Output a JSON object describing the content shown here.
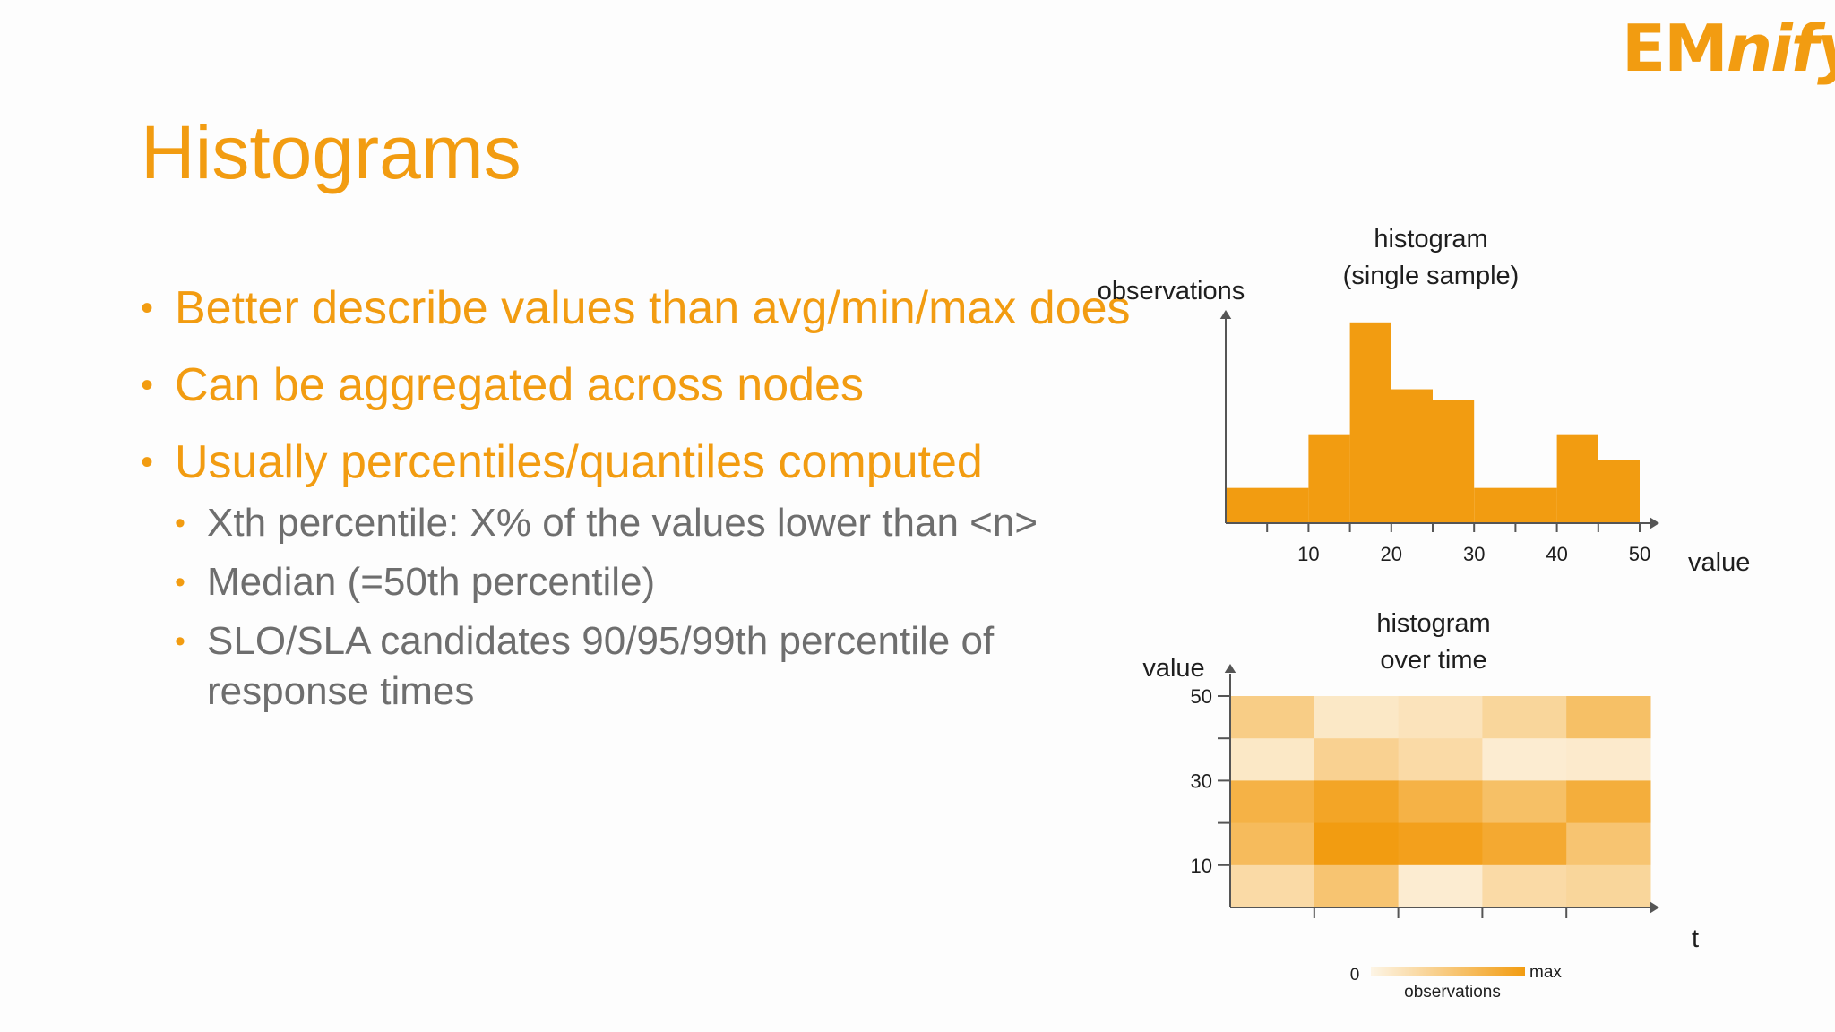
{
  "logo": {
    "text_em": "EM",
    "text_nify": "nify"
  },
  "slide": {
    "title": "Histograms",
    "bullets": [
      {
        "text": "Better describe values than avg/min/max does"
      },
      {
        "text": "Can be aggregated across nodes"
      },
      {
        "text": "Usually percentiles/quantiles computed"
      }
    ],
    "sub_bullets": [
      {
        "text": "Xth percentile: X% of the values lower than <n>"
      },
      {
        "text": "Median (=50th percentile)"
      },
      {
        "text": "SLO/SLA candidates 90/95/99th percentile of response times"
      }
    ]
  },
  "colors": {
    "accent": "#f29c11",
    "text_gray": "#6e6e6e",
    "axis": "#555555",
    "background": "#fdfdfd"
  },
  "chart_data": [
    {
      "type": "bar",
      "title": "histogram\n(single sample)",
      "ylabel": "observations",
      "xlabel": "value",
      "x_ticks": [
        10,
        20,
        30,
        40,
        50
      ],
      "bins": [
        {
          "from": 0,
          "to": 10,
          "value": 1
        },
        {
          "from": 10,
          "to": 15,
          "value": 2.5
        },
        {
          "from": 15,
          "to": 20,
          "value": 5.7
        },
        {
          "from": 20,
          "to": 25,
          "value": 3.8
        },
        {
          "from": 25,
          "to": 30,
          "value": 3.5
        },
        {
          "from": 30,
          "to": 40,
          "value": 1
        },
        {
          "from": 40,
          "to": 45,
          "value": 2.5
        },
        {
          "from": 45,
          "to": 50,
          "value": 1.8
        }
      ],
      "xlim": [
        0,
        50
      ],
      "ylim": [
        0,
        6
      ],
      "bar_color": "#f29c11"
    },
    {
      "type": "heatmap",
      "title": "histogram\nover time",
      "ylabel": "value",
      "xlabel": "t",
      "y_ticks": [
        10,
        30,
        50
      ],
      "ylim": [
        0,
        50
      ],
      "columns": 5,
      "rows_top_to_bottom": [
        [
          0.45,
          0.15,
          0.2,
          0.35,
          0.6
        ],
        [
          0.15,
          0.4,
          0.3,
          0.1,
          0.12
        ],
        [
          0.75,
          0.9,
          0.75,
          0.6,
          0.8
        ],
        [
          0.65,
          1.0,
          0.95,
          0.85,
          0.55
        ],
        [
          0.3,
          0.55,
          0.1,
          0.3,
          0.35
        ]
      ],
      "color_scale": {
        "min_label": "0",
        "max_label": "max",
        "label": "observations",
        "min_color": "#fdf5e6",
        "max_color": "#f29c11"
      }
    }
  ]
}
